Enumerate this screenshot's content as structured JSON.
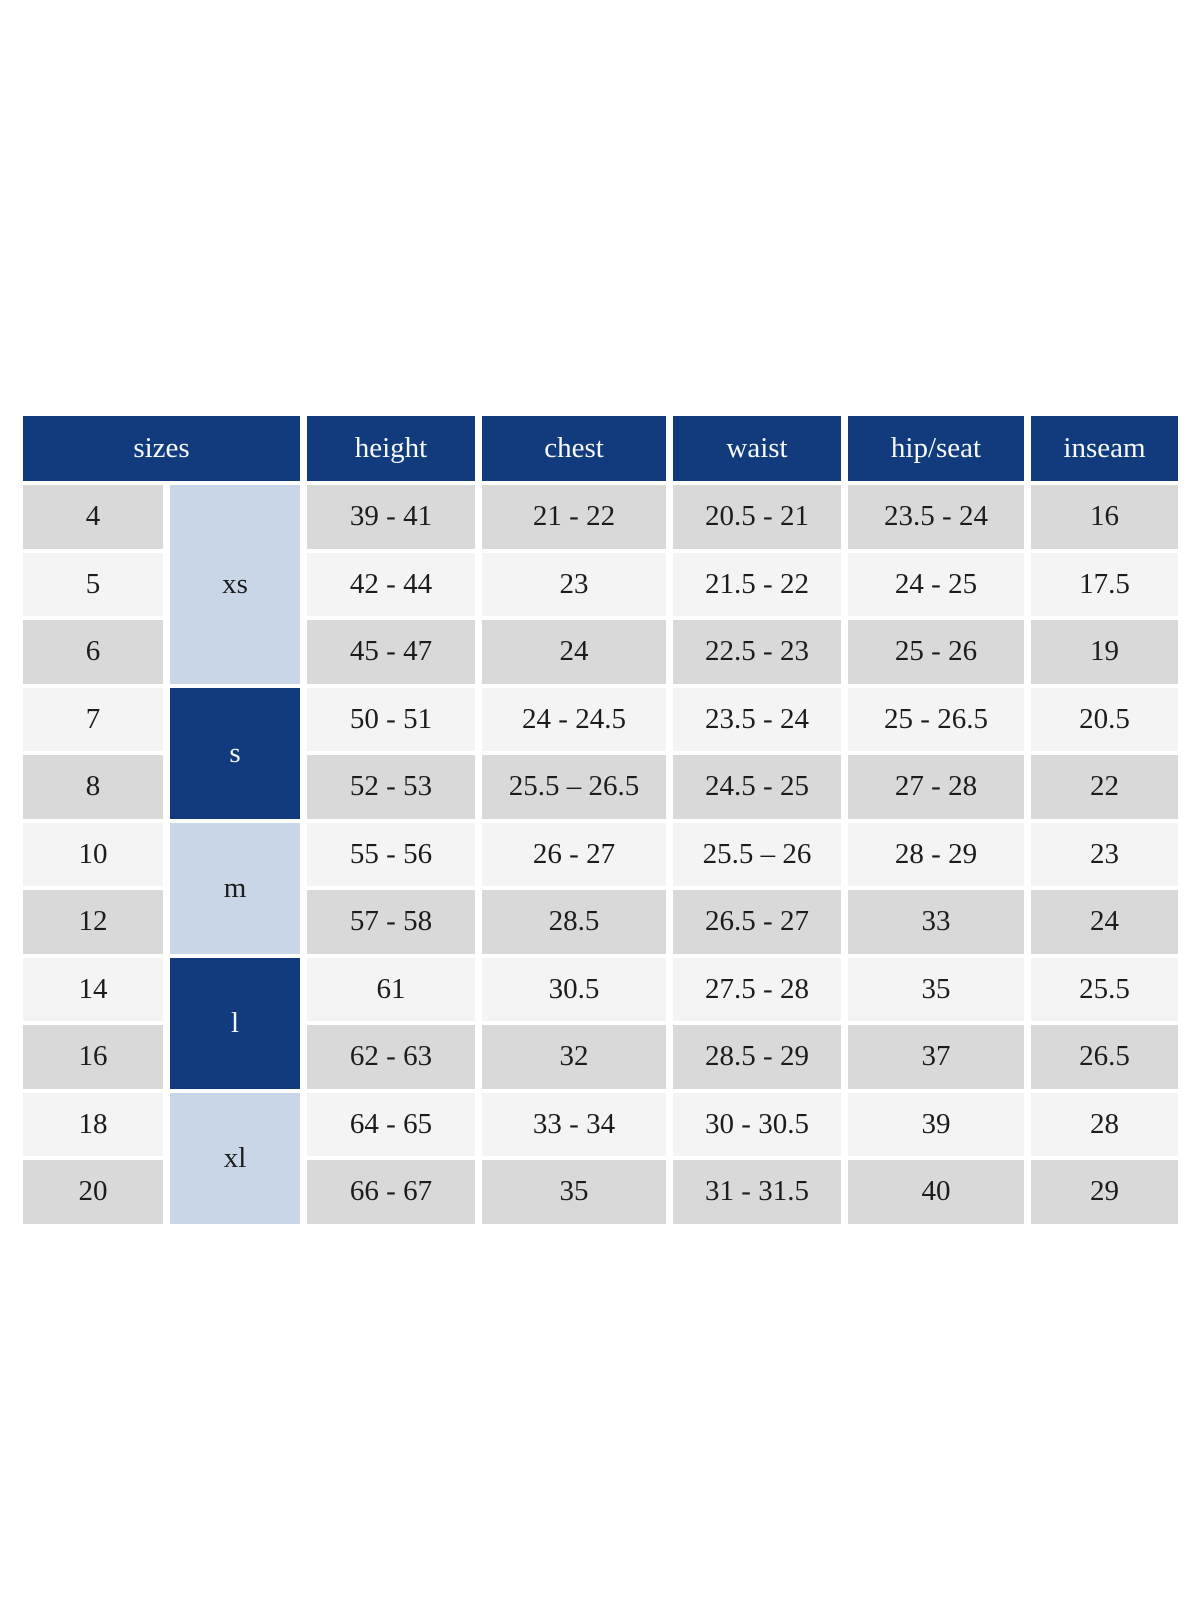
{
  "colors": {
    "header_navy": "#113b7c",
    "group_light_blue": "#c9d6e8",
    "row_gray": "#d9d9d9",
    "row_light": "#f4f4f4",
    "header_text": "#f7f9fc",
    "body_text": "#1c1c1c"
  },
  "size_chart": {
    "headers": [
      {
        "label": "sizes",
        "span": 2
      },
      {
        "label": "height",
        "span": 1
      },
      {
        "label": "chest",
        "span": 1
      },
      {
        "label": "waist",
        "span": 1
      },
      {
        "label": "hip/seat",
        "span": 1
      },
      {
        "label": "inseam",
        "span": 1
      }
    ],
    "groups": [
      {
        "label": "xs",
        "rows": 3,
        "tone": "light"
      },
      {
        "label": "s",
        "rows": 2,
        "tone": "dark"
      },
      {
        "label": "m",
        "rows": 2,
        "tone": "light"
      },
      {
        "label": "l",
        "rows": 2,
        "tone": "dark"
      },
      {
        "label": "xl",
        "rows": 2,
        "tone": "light"
      }
    ],
    "rows": [
      {
        "size": "4",
        "height": "39 - 41",
        "chest": "21 - 22",
        "waist": "20.5 - 21",
        "hip_seat": "23.5 - 24",
        "inseam": "16"
      },
      {
        "size": "5",
        "height": "42 - 44",
        "chest": "23",
        "waist": "21.5 - 22",
        "hip_seat": "24 - 25",
        "inseam": "17.5"
      },
      {
        "size": "6",
        "height": "45 - 47",
        "chest": "24",
        "waist": "22.5 - 23",
        "hip_seat": "25 - 26",
        "inseam": "19"
      },
      {
        "size": "7",
        "height": "50 - 51",
        "chest": "24 - 24.5",
        "waist": "23.5 - 24",
        "hip_seat": "25 - 26.5",
        "inseam": "20.5"
      },
      {
        "size": "8",
        "height": "52 - 53",
        "chest": "25.5 – 26.5",
        "waist": "24.5 - 25",
        "hip_seat": "27 - 28",
        "inseam": "22"
      },
      {
        "size": "10",
        "height": "55 - 56",
        "chest": "26 - 27",
        "waist": "25.5 – 26",
        "hip_seat": "28 - 29",
        "inseam": "23"
      },
      {
        "size": "12",
        "height": "57 - 58",
        "chest": "28.5",
        "waist": "26.5 - 27",
        "hip_seat": "33",
        "inseam": "24"
      },
      {
        "size": "14",
        "height": "61",
        "chest": "30.5",
        "waist": "27.5 - 28",
        "hip_seat": "35",
        "inseam": "25.5"
      },
      {
        "size": "16",
        "height": "62 - 63",
        "chest": "32",
        "waist": "28.5 - 29",
        "hip_seat": "37",
        "inseam": "26.5"
      },
      {
        "size": "18",
        "height": "64 - 65",
        "chest": "33 - 34",
        "waist": "30 - 30.5",
        "hip_seat": "39",
        "inseam": "28"
      },
      {
        "size": "20",
        "height": "66 - 67",
        "chest": "35",
        "waist": "31 - 31.5",
        "hip_seat": "40",
        "inseam": "29"
      }
    ]
  }
}
